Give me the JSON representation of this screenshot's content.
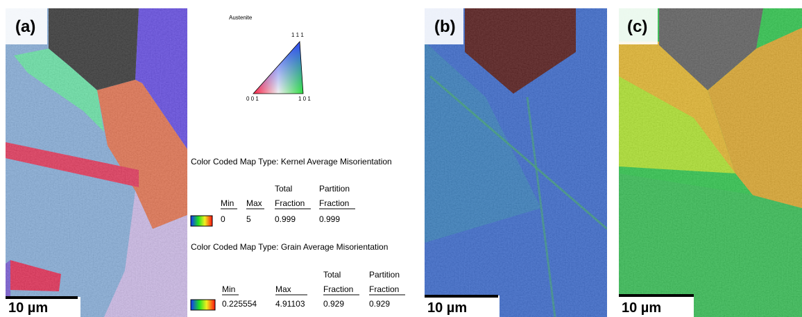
{
  "panels": [
    {
      "label": "(a)",
      "scale_bar": "10 µm"
    },
    {
      "label": "(b)",
      "scale_bar": "10 µm"
    },
    {
      "label": "(c)",
      "scale_bar": "10 µm"
    }
  ],
  "ipf_legend": {
    "phase": "Austenite",
    "corners": [
      "1 1 1",
      "0 0 1",
      "1 0 1"
    ]
  },
  "legends": [
    {
      "title": "Color Coded Map Type: Kernel Average Misorientation",
      "headers": [
        [
          "Min"
        ],
        [
          "Max"
        ],
        [
          "Total",
          "Fraction"
        ],
        [
          "Partition",
          "Fraction"
        ]
      ],
      "values": [
        "0",
        "5",
        "0.999",
        "0.999"
      ]
    },
    {
      "title": "Color Coded Map Type: Grain Average Misorientation",
      "headers": [
        [
          "Min"
        ],
        [
          "Max"
        ],
        [
          "Total",
          "Fraction"
        ],
        [
          "Partition",
          "Fraction"
        ]
      ],
      "values": [
        "0.225554",
        "4.91103",
        "0.929",
        "0.929"
      ]
    }
  ]
}
